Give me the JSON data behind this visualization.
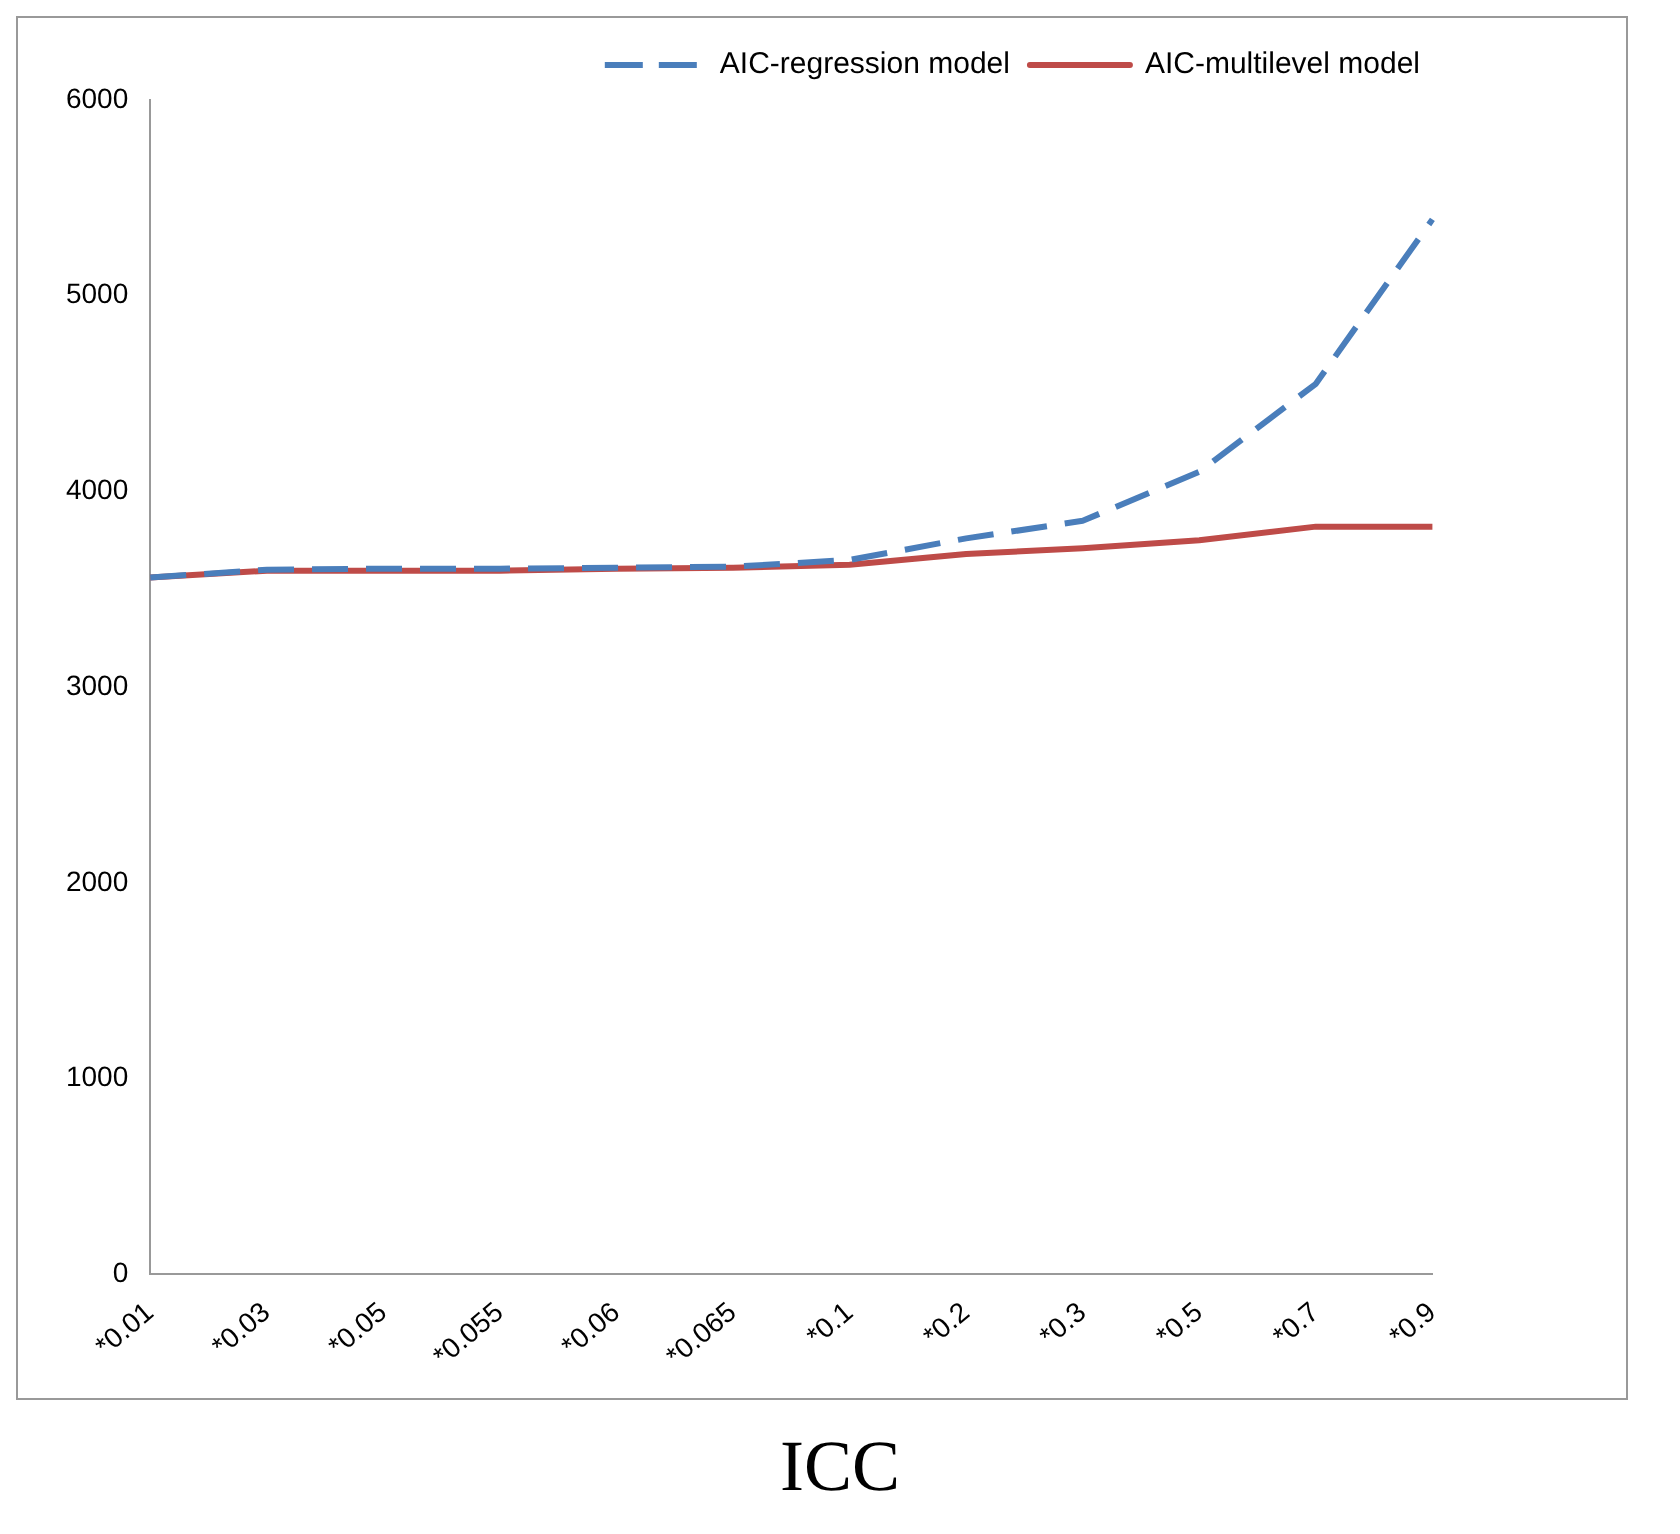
{
  "chart_data": {
    "type": "line",
    "xlabel": "ICC",
    "categories": [
      "*0.01",
      "*0.03",
      "*0.05",
      "*0.055",
      "*0.06",
      "*0.065",
      "*0.1",
      "*0.2",
      "*0.3",
      "*0.5",
      "*0.7",
      "*0.9"
    ],
    "series": [
      {
        "name": "AIC-regression model",
        "color": "#4a7ebb",
        "line_style": "dashed",
        "values": [
          3560,
          3600,
          3605,
          3605,
          3610,
          3615,
          3650,
          3760,
          3850,
          4100,
          4550,
          5390
        ]
      },
      {
        "name": "AIC-multilevel model",
        "color": "#be4b48",
        "line_style": "solid",
        "values": [
          3560,
          3595,
          3595,
          3595,
          3605,
          3610,
          3625,
          3680,
          3710,
          3750,
          3820,
          3820
        ]
      }
    ],
    "ylim": [
      0,
      6000
    ],
    "yticks": [
      0,
      1000,
      2000,
      3000,
      4000,
      5000,
      6000
    ],
    "grid": false,
    "legend": "top",
    "marker": "none"
  }
}
